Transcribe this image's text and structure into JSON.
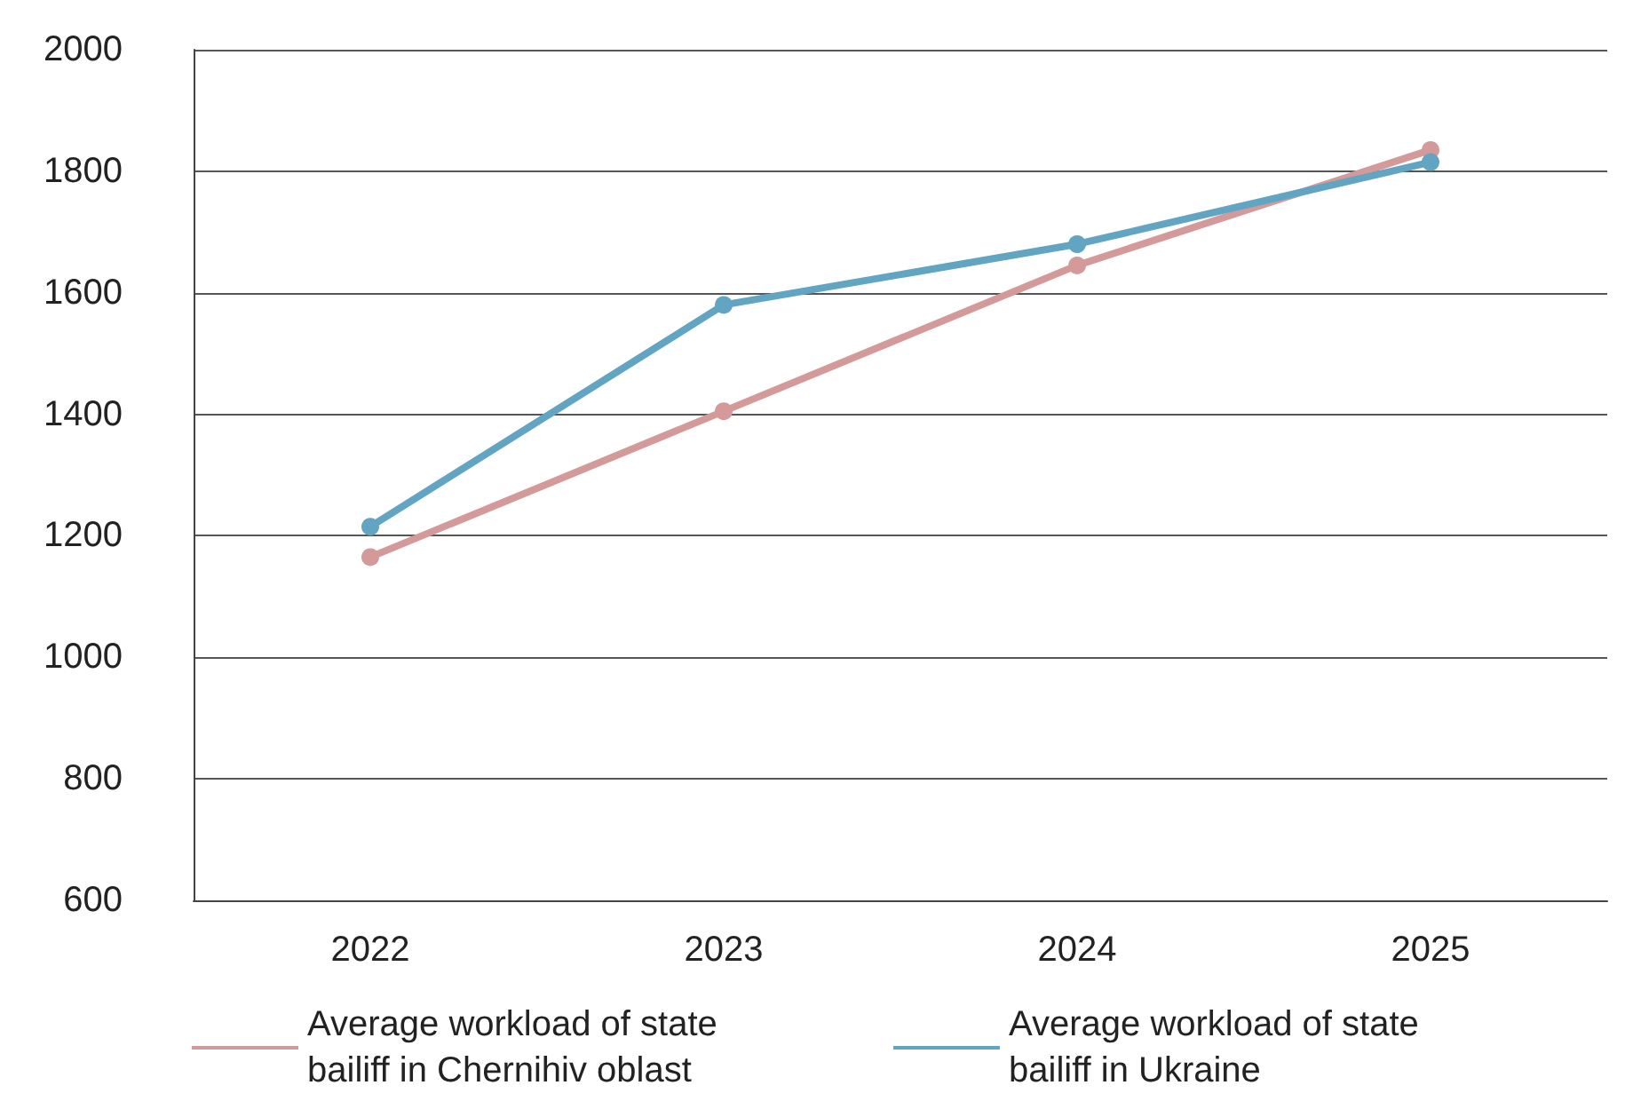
{
  "chart_data": {
    "type": "line",
    "categories": [
      "2022",
      "2023",
      "2024",
      "2025"
    ],
    "series": [
      {
        "name": "Average workload of state bailiff in Chernihiv oblast",
        "color": "#d49a9a",
        "values": [
          1165,
          1405,
          1645,
          1835
        ]
      },
      {
        "name": "Average workload of state bailiff in Ukraine",
        "color": "#62a5c2",
        "values": [
          1215,
          1580,
          1680,
          1815
        ]
      }
    ],
    "ylim": [
      600,
      2000
    ],
    "yticks": [
      600,
      800,
      1000,
      1200,
      1400,
      1600,
      1800,
      2000
    ],
    "grid": "y",
    "legend": "bottom",
    "marker": "circle",
    "line_style": "solid"
  }
}
